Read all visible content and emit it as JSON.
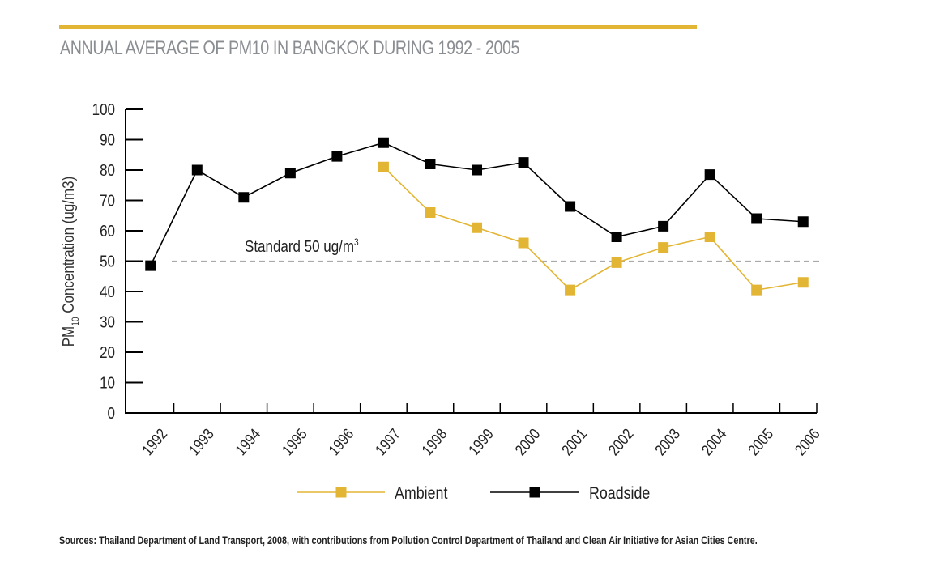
{
  "header": {
    "title": "ANNUAL AVERAGE OF PM10 IN BANGKOK DURING 1992 - 2005",
    "accent_color": "#E3B534"
  },
  "footer": {
    "source": "Sources: Thailand Department of Land Transport, 2008, with contributions from Pollution Control Department of Thailand and Clean Air Initiative for Asian Cities Centre."
  },
  "chart_data": {
    "type": "line",
    "title": "ANNUAL AVERAGE OF PM10 IN BANGKOK DURING 1992 - 2005",
    "xlabel": "",
    "ylabel_main": "PM",
    "ylabel_sub": "10",
    "ylabel_rest": " Concentration (ug/m3)",
    "ylim": [
      0,
      100
    ],
    "yticks": [
      0,
      10,
      20,
      30,
      40,
      50,
      60,
      70,
      80,
      90,
      100
    ],
    "categories": [
      "1992",
      "1993",
      "1994",
      "1995",
      "1996",
      "1997",
      "1998",
      "1999",
      "2000",
      "2001",
      "2002",
      "2003",
      "2004",
      "2005",
      "2006"
    ],
    "series": [
      {
        "name": "Ambient",
        "color": "#E3B534",
        "values": [
          null,
          null,
          null,
          null,
          null,
          81,
          66,
          61,
          56,
          40.5,
          49.5,
          54.5,
          58,
          40.5,
          43
        ]
      },
      {
        "name": "Roadside",
        "color": "#000000",
        "values": [
          48.5,
          80,
          71,
          79,
          84.5,
          89,
          82,
          80,
          82.5,
          68,
          58,
          61.5,
          78.5,
          64,
          63
        ]
      }
    ],
    "reference_line": {
      "value": 50,
      "label": "Standard 50 ug/m",
      "label_sup": "3",
      "color": "#aaaaaa"
    },
    "legend": {
      "placement": "bottom-center",
      "items": [
        "Ambient",
        "Roadside"
      ]
    },
    "grid": false
  }
}
